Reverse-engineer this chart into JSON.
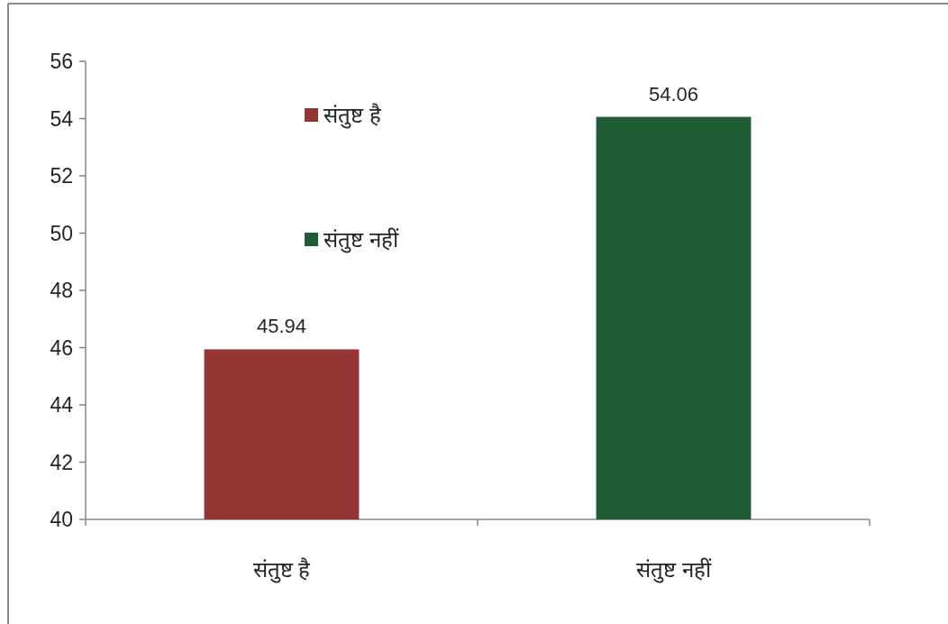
{
  "chart_data": {
    "type": "bar",
    "categories": [
      "संतुष्ट है",
      "संतुष्ट नहीं"
    ],
    "series": [
      {
        "name": "संतुष्ट है",
        "color": "#943634",
        "values": [
          45.94,
          null
        ]
      },
      {
        "name": "संतुष्ट नहीं",
        "color": "#1f5c34",
        "values": [
          null,
          54.06
        ]
      }
    ],
    "ylim": [
      40,
      56
    ],
    "yticks": [
      40,
      42,
      44,
      46,
      48,
      50,
      52,
      54,
      56
    ],
    "data_labels": true,
    "legend": "top left"
  }
}
